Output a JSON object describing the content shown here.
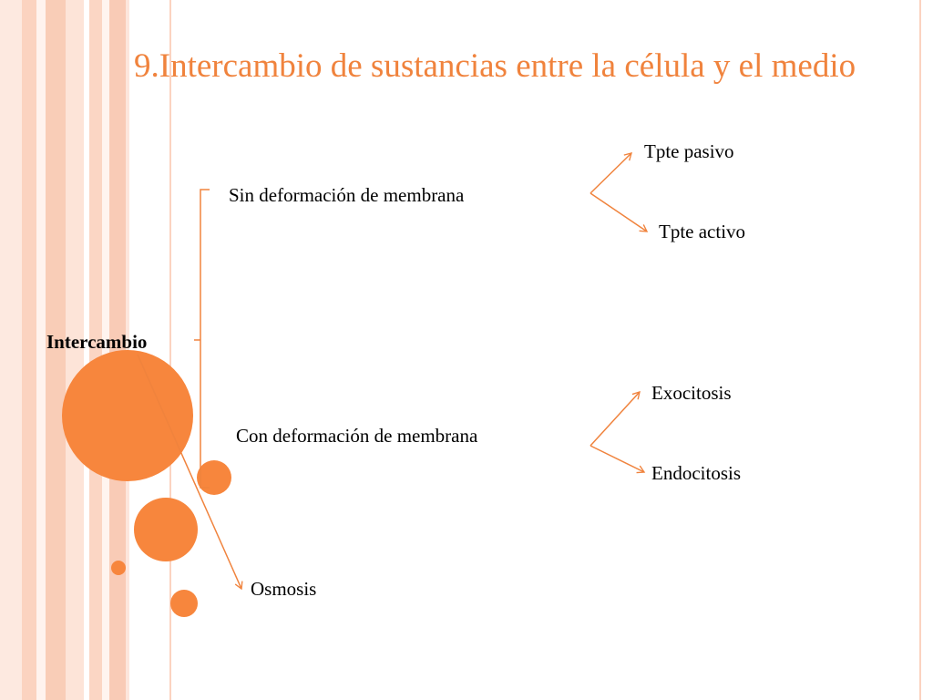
{
  "slide": {
    "title": "9.Intercambio de sustancias entre la célula y el medio",
    "accent_color": "#f0833d",
    "circle_color": "#f7863d",
    "stripe_color": "#fbd6c4"
  },
  "diagram": {
    "root": "Intercambio",
    "branches": [
      {
        "label": "Sin deformación de membrana",
        "children": [
          "Tpte pasivo",
          "Tpte activo"
        ]
      },
      {
        "label": "Con deformación de membrana",
        "children": [
          "Exocitosis",
          "Endocitosis"
        ]
      }
    ],
    "other": "Osmosis"
  }
}
